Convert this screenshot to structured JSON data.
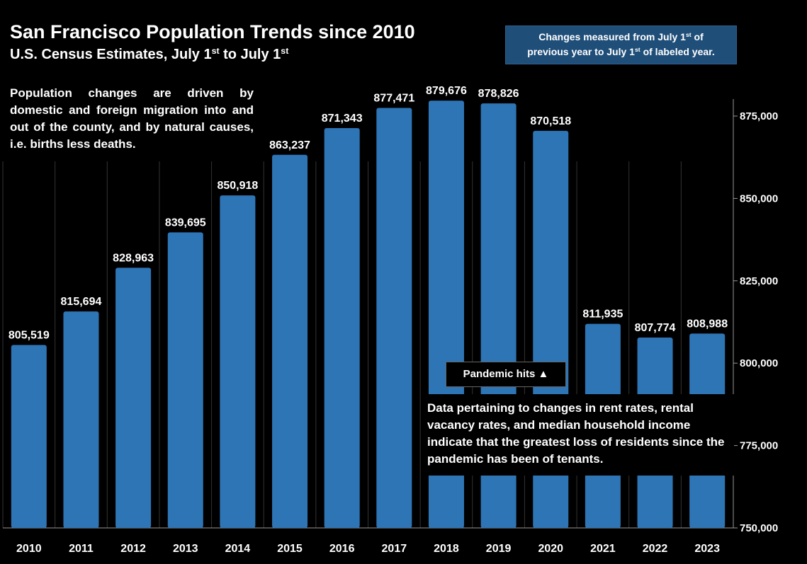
{
  "header": {
    "title": "San Francisco Population Trends since 2010",
    "subtitle_pre": "U.S. Census Estimates, July 1",
    "subtitle_sup1": "st",
    "subtitle_mid": " to July 1",
    "subtitle_sup2": "st"
  },
  "note": {
    "line1_pre": "Changes measured from July 1",
    "line1_sup": "st",
    "line1_post": " of",
    "line2_pre": "previous year to July 1",
    "line2_sup": "st",
    "line2_post": " of labeled year."
  },
  "intro_text": "Population changes are driven by domestic and foreign migration into and out of the county, and by natural causes, i.e. births less deaths.",
  "pandemic_label": "Pandemic hits",
  "pandemic_icon": "up-triangle-icon",
  "pandemic_glyph": "▲",
  "data_note": "Data pertaining to changes in rent rates, rental vacancy rates, and  median household income indicate that the greatest loss of residents since the pandemic has been of tenants.",
  "colors": {
    "background": "#000000",
    "bar": "#2e75b6",
    "note_box": "#1f4e79",
    "text": "#ffffff"
  },
  "chart_data": {
    "type": "bar",
    "title": "San Francisco Population Trends since 2010",
    "categories": [
      "2010",
      "2011",
      "2012",
      "2013",
      "2014",
      "2015",
      "2016",
      "2017",
      "2018",
      "2019",
      "2020",
      "2021",
      "2022",
      "2023"
    ],
    "values": [
      805519,
      815694,
      828963,
      839695,
      850918,
      863237,
      871343,
      877471,
      879676,
      878826,
      870518,
      811935,
      807774,
      808988
    ],
    "value_labels": [
      "805,519",
      "815,694",
      "828,963",
      "839,695",
      "850,918",
      "863,237",
      "871,343",
      "877,471",
      "879,676",
      "878,826",
      "870,518",
      "811,935",
      "807,774",
      "808,988"
    ],
    "ylim": [
      750000,
      875000
    ],
    "yticks": [
      750000,
      775000,
      800000,
      825000,
      850000,
      875000
    ],
    "ytick_labels": [
      "750,000",
      "775,000",
      "800,000",
      "825,000",
      "850,000",
      "875,000"
    ],
    "y_axis_side": "right",
    "grid": true
  }
}
